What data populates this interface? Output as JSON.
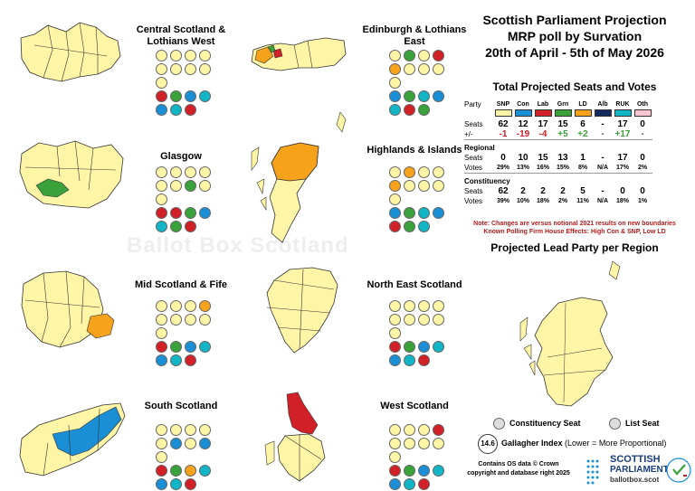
{
  "watermark": "Ballot Box Scotland",
  "header": {
    "title": "Scottish Parliament Projection",
    "subtitle": "MRP poll by Survation",
    "dates": "20th of April - 5th of May 2026",
    "table_title": "Total Projected Seats and Votes",
    "map_title": "Projected Lead Party per Region"
  },
  "colors": {
    "SNP": "#fff5a6",
    "Con": "#1a8fd6",
    "Lab": "#d12027",
    "Grn": "#3aa23a",
    "LD": "#f7a21b",
    "Alb": "#14295e",
    "RUK": "#12b5c6",
    "Oth": "#f9c5d0"
  },
  "chart_data": {
    "type": "table",
    "parties": [
      "SNP",
      "Con",
      "Lab",
      "Grn",
      "LD",
      "Alb",
      "RUK",
      "Oth"
    ],
    "total": {
      "label_party": "Party",
      "label_seats": "Seats",
      "label_change": "+/-",
      "seats": [
        "62",
        "12",
        "17",
        "15",
        "6",
        "-",
        "17",
        "0"
      ],
      "change": [
        "-1",
        "-19",
        "-4",
        "+5",
        "+2",
        "-",
        "+17",
        "-"
      ]
    },
    "regional": {
      "label": "Regional",
      "label_seats": "Seats",
      "label_votes": "Votes",
      "seats": [
        "0",
        "10",
        "15",
        "13",
        "1",
        "-",
        "17",
        "0"
      ],
      "votes": [
        "29%",
        "13%",
        "16%",
        "15%",
        "8%",
        "N/A",
        "17%",
        "2%"
      ]
    },
    "constituency": {
      "label": "Constituency",
      "label_seats": "Seats",
      "label_votes": "Votes",
      "seats": [
        "62",
        "2",
        "2",
        "2",
        "5",
        "-",
        "0",
        "0"
      ],
      "votes": [
        "39%",
        "10%",
        "18%",
        "2%",
        "11%",
        "N/A",
        "18%",
        "1%"
      ]
    },
    "regions": [
      {
        "name": "Central Scotland & Lothians West",
        "constituency": [
          "SNP",
          "SNP",
          "SNP",
          "SNP",
          "SNP",
          "SNP",
          "SNP",
          "SNP",
          "SNP"
        ],
        "list": [
          "Lab",
          "Grn",
          "Con",
          "RUK",
          "Con",
          "RUK",
          "Lab"
        ]
      },
      {
        "name": "Edinburgh & Lothians East",
        "constituency": [
          "SNP",
          "Grn",
          "SNP",
          "Lab",
          "LD",
          "SNP",
          "SNP",
          "SNP",
          "SNP"
        ],
        "list": [
          "Con",
          "Grn",
          "RUK",
          "Con",
          "RUK",
          "Lab",
          "Grn"
        ]
      },
      {
        "name": "Glasgow",
        "constituency": [
          "SNP",
          "SNP",
          "SNP",
          "SNP",
          "SNP",
          "SNP",
          "Grn",
          "SNP",
          "SNP"
        ],
        "list": [
          "Lab",
          "Lab",
          "Grn",
          "Con",
          "RUK",
          "Grn",
          "Lab"
        ]
      },
      {
        "name": "Highlands & Islands",
        "constituency": [
          "SNP",
          "LD",
          "SNP",
          "SNP",
          "LD",
          "SNP",
          "SNP",
          "SNP",
          "SNP"
        ],
        "list": [
          "Con",
          "Grn",
          "RUK",
          "Con",
          "Lab",
          "Grn",
          "RUK"
        ]
      },
      {
        "name": "Mid Scotland & Fife",
        "constituency": [
          "SNP",
          "SNP",
          "SNP",
          "LD",
          "SNP",
          "SNP",
          "SNP",
          "SNP",
          "SNP"
        ],
        "list": [
          "Lab",
          "Grn",
          "Con",
          "RUK",
          "Con",
          "RUK",
          "Lab"
        ]
      },
      {
        "name": "North East Scotland",
        "constituency": [
          "SNP",
          "SNP",
          "SNP",
          "SNP",
          "SNP",
          "SNP",
          "SNP",
          "SNP",
          "SNP"
        ],
        "list": [
          "Lab",
          "Grn",
          "Con",
          "RUK",
          "Con",
          "RUK",
          "Lab"
        ]
      },
      {
        "name": "South Scotland",
        "constituency": [
          "SNP",
          "SNP",
          "SNP",
          "SNP",
          "SNP",
          "Con",
          "SNP",
          "Con",
          "SNP"
        ],
        "list": [
          "Lab",
          "Grn",
          "LD",
          "RUK",
          "Con",
          "RUK",
          "Lab"
        ]
      },
      {
        "name": "West Scotland",
        "constituency": [
          "SNP",
          "SNP",
          "SNP",
          "Lab",
          "SNP",
          "SNP",
          "SNP",
          "SNP",
          "SNP"
        ],
        "list": [
          "Lab",
          "Grn",
          "Con",
          "RUK",
          "Con",
          "RUK",
          "Lab"
        ]
      }
    ]
  },
  "notes": {
    "line1": "Note: Changes are versus notional 2021 results on new boundaries",
    "line2": "Known Polling Firm House Effects: High Con & SNP, Low LD"
  },
  "legend": {
    "constituency": "Constituency Seat",
    "list": "List Seat",
    "gallagher_value": "14.6",
    "gallagher_label": "Gallagher Index",
    "gallagher_note": "(Lower = More Proportional)"
  },
  "footer": {
    "credit1": "Contains OS data © Crown",
    "credit2": "copyright and database right 2025",
    "logo_line1": "SCOTTISH",
    "logo_line2": "PARLIAMENT",
    "logo_url": "ballotbox.scot"
  }
}
